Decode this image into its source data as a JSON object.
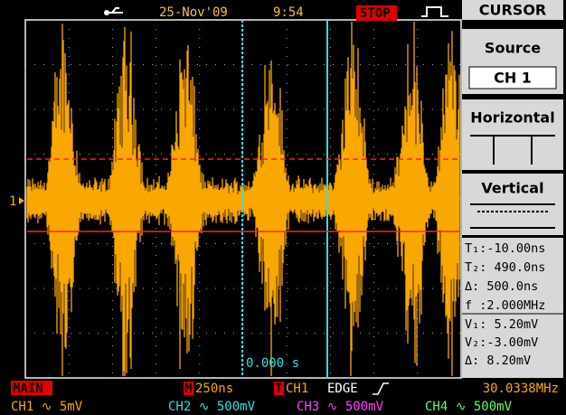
{
  "header": {
    "date": "25-Nov'09",
    "time": "9:54",
    "status": "STOP",
    "menu_title": "CURSOR"
  },
  "menu": {
    "items": [
      {
        "label": "Source",
        "value": "CH 1"
      },
      {
        "label": "Horizontal"
      },
      {
        "label": "Vertical"
      }
    ]
  },
  "readouts": [
    "T₁:-10.00ns",
    "T₂: 490.0ns",
    "Δ: 500.0ns",
    "f :2.000MHz",
    "V₁: 5.20mV",
    "V₂:-3.00mV",
    "Δ: 8.20mV"
  ],
  "screen": {
    "channel_marker": "1",
    "time_label": "0.000 s"
  },
  "status_bar": {
    "mode": "MAIN",
    "timebase_marker": "M",
    "timebase": "250ns",
    "trigger_marker": "T",
    "trigger_source": "CH1",
    "trigger_type": "EDGE",
    "frequency": "30.0338MHz"
  },
  "channels": [
    "CH1 ∿ 5mV",
    "CH2 ∿ 500mV",
    "CH3 ∿ 500mV",
    "CH4 ∿ 500mV"
  ]
}
